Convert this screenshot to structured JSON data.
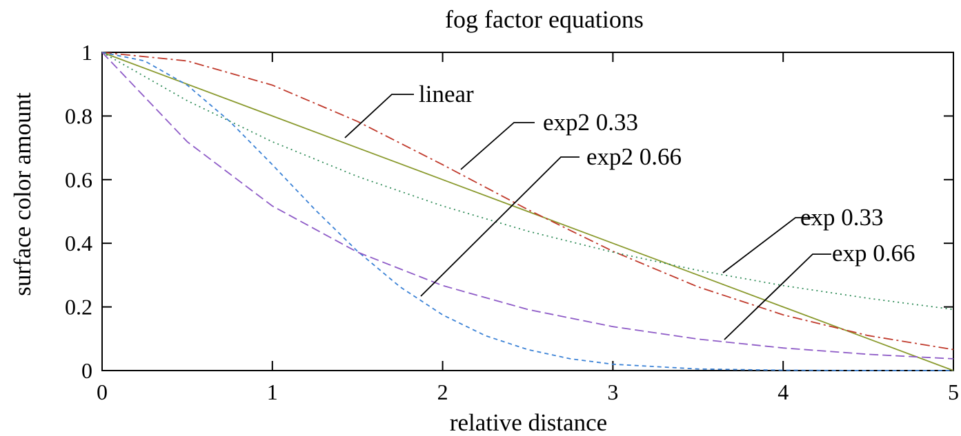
{
  "chart_data": {
    "type": "line",
    "title": "fog factor equations",
    "xlabel": "relative distance",
    "ylabel": "surface color amount",
    "xlim": [
      0,
      5
    ],
    "ylim": [
      0,
      1
    ],
    "xticks": [
      "0",
      "1",
      "2",
      "3",
      "4",
      "5"
    ],
    "yticks": [
      "0",
      "0.2",
      "0.4",
      "0.6",
      "0.8",
      "1"
    ],
    "grid": false,
    "legend": "inline labels with leader lines",
    "series": [
      {
        "name": "linear",
        "color": "#8a9a2e",
        "dash": "solid",
        "x": [
          0,
          1,
          2,
          3,
          4,
          5
        ],
        "y": [
          1.0,
          0.8,
          0.6,
          0.4,
          0.2,
          0.0
        ]
      },
      {
        "name": "exp2 0.33",
        "color": "#c0392b",
        "dash": "dashdot",
        "x": [
          0,
          0.5,
          1,
          1.5,
          2,
          2.5,
          3,
          3.5,
          4,
          4.5,
          5
        ],
        "y": [
          1.0,
          0.973,
          0.897,
          0.783,
          0.647,
          0.506,
          0.375,
          0.263,
          0.175,
          0.11,
          0.066
        ]
      },
      {
        "name": "exp2 0.66",
        "color": "#3b82d6",
        "dash": "dashed",
        "x": [
          0,
          0.25,
          0.5,
          0.75,
          1,
          1.25,
          1.5,
          1.75,
          2,
          2.25,
          2.5,
          2.75,
          3,
          3.5,
          4,
          4.5,
          5
        ],
        "y": [
          1.0,
          0.973,
          0.897,
          0.783,
          0.647,
          0.506,
          0.375,
          0.263,
          0.175,
          0.11,
          0.066,
          0.037,
          0.02,
          0.005,
          0.001,
          0.0,
          0.0
        ]
      },
      {
        "name": "exp 0.33",
        "color": "#2e8b57",
        "dash": "dotted",
        "x": [
          0,
          0.5,
          1,
          1.5,
          2,
          2.5,
          3,
          3.5,
          4,
          4.5,
          5
        ],
        "y": [
          1.0,
          0.848,
          0.719,
          0.61,
          0.517,
          0.438,
          0.372,
          0.315,
          0.267,
          0.227,
          0.192
        ]
      },
      {
        "name": "exp 0.66",
        "color": "#8e5bc7",
        "dash": "longdash",
        "x": [
          0,
          0.5,
          1,
          1.5,
          2,
          2.5,
          3,
          3.5,
          4,
          4.5,
          5
        ],
        "y": [
          1.0,
          0.719,
          0.517,
          0.372,
          0.267,
          0.192,
          0.138,
          0.099,
          0.071,
          0.051,
          0.037
        ]
      }
    ]
  }
}
